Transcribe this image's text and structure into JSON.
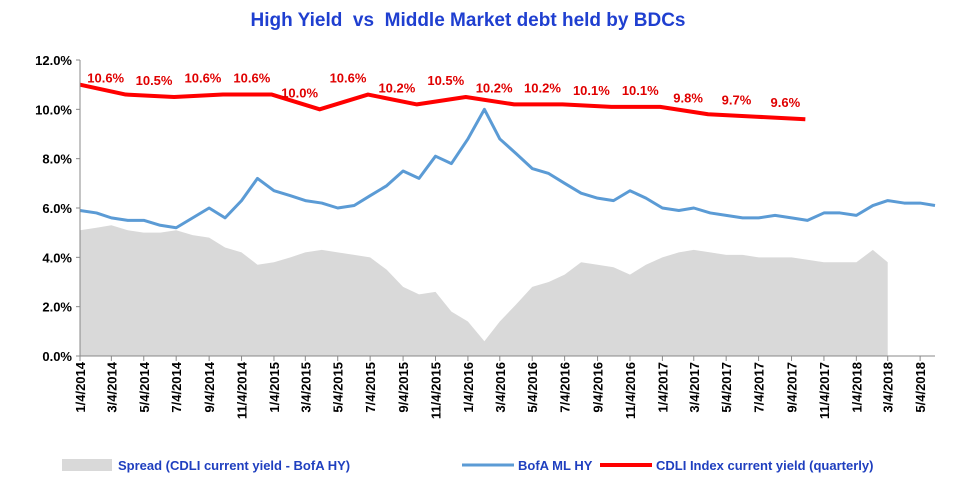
{
  "chart_data": {
    "type": "line",
    "title": "High Yield  vs  Middle Market debt held by BDCs",
    "xlim": [
      "1/4/2014",
      "6/1/2018"
    ],
    "xticks": [
      "1/4/2014",
      "3/4/2014",
      "5/4/2014",
      "7/4/2014",
      "9/4/2014",
      "11/4/2014",
      "1/4/2015",
      "3/4/2015",
      "5/4/2015",
      "7/4/2015",
      "9/4/2015",
      "11/4/2015",
      "1/4/2016",
      "3/4/2016",
      "5/4/2016",
      "7/4/2016",
      "9/4/2016",
      "11/4/2016",
      "1/4/2017",
      "3/4/2017",
      "5/4/2017",
      "7/4/2017",
      "9/4/2017",
      "11/4/2017",
      "1/4/2018",
      "3/4/2018",
      "5/4/2018"
    ],
    "ylim": [
      0,
      12
    ],
    "yticks": [
      {
        "value": 0,
        "label": "0.0%"
      },
      {
        "value": 2,
        "label": "2.0%"
      },
      {
        "value": 4,
        "label": "4.0%"
      },
      {
        "value": 6,
        "label": "6.0%"
      },
      {
        "value": 8,
        "label": "8.0%"
      },
      {
        "value": 10,
        "label": "10.0%"
      },
      {
        "value": 12,
        "label": "12.0%"
      }
    ],
    "legend": "bottom",
    "series": [
      {
        "name": "Spread (CDLI current yield - BofA HY)",
        "type": "area",
        "color": "#d9d9d9",
        "x": [
          "1/4/2014",
          "2/4/2014",
          "3/4/2014",
          "4/4/2014",
          "5/4/2014",
          "6/4/2014",
          "7/4/2014",
          "8/4/2014",
          "9/4/2014",
          "10/4/2014",
          "11/4/2014",
          "12/4/2014",
          "1/4/2015",
          "2/4/2015",
          "3/4/2015",
          "4/4/2015",
          "5/4/2015",
          "6/4/2015",
          "7/4/2015",
          "8/4/2015",
          "9/4/2015",
          "10/4/2015",
          "11/4/2015",
          "12/4/2015",
          "1/4/2016",
          "2/4/2016",
          "3/4/2016",
          "4/4/2016",
          "5/4/2016",
          "6/4/2016",
          "7/4/2016",
          "8/4/2016",
          "9/4/2016",
          "10/4/2016",
          "11/4/2016",
          "12/4/2016",
          "1/4/2017",
          "2/4/2017",
          "3/4/2017",
          "4/4/2017",
          "5/4/2017",
          "6/4/2017",
          "7/4/2017",
          "8/4/2017",
          "9/4/2017",
          "10/4/2017",
          "11/4/2017",
          "12/4/2017",
          "1/4/2018",
          "2/4/2018",
          "3/4/2018"
        ],
        "values": [
          5.1,
          5.2,
          5.3,
          5.1,
          5.0,
          5.0,
          5.1,
          4.9,
          4.8,
          4.4,
          4.2,
          3.7,
          3.8,
          4.0,
          4.2,
          4.3,
          4.2,
          4.1,
          4.0,
          3.5,
          2.8,
          2.5,
          2.6,
          1.8,
          1.4,
          0.6,
          1.4,
          2.1,
          2.8,
          3.0,
          3.3,
          3.8,
          3.7,
          3.6,
          3.3,
          3.7,
          4.0,
          4.2,
          4.3,
          4.2,
          4.1,
          4.1,
          4.0,
          4.0,
          4.0,
          3.9,
          3.8,
          3.8,
          3.8,
          4.3,
          3.8
        ]
      },
      {
        "name": "BofA ML HY",
        "type": "line",
        "color": "#5b9bd5",
        "x": [
          "1/4/2014",
          "2/4/2014",
          "3/4/2014",
          "4/4/2014",
          "5/4/2014",
          "6/4/2014",
          "7/4/2014",
          "8/4/2014",
          "9/4/2014",
          "10/4/2014",
          "11/4/2014",
          "12/4/2014",
          "1/4/2015",
          "2/4/2015",
          "3/4/2015",
          "4/4/2015",
          "5/4/2015",
          "6/4/2015",
          "7/4/2015",
          "8/4/2015",
          "9/4/2015",
          "10/4/2015",
          "11/4/2015",
          "12/4/2015",
          "1/4/2016",
          "2/4/2016",
          "3/4/2016",
          "4/4/2016",
          "5/4/2016",
          "6/4/2016",
          "7/4/2016",
          "8/4/2016",
          "9/4/2016",
          "10/4/2016",
          "11/4/2016",
          "12/4/2016",
          "1/4/2017",
          "2/4/2017",
          "3/4/2017",
          "4/4/2017",
          "5/4/2017",
          "6/4/2017",
          "7/4/2017",
          "8/4/2017",
          "9/4/2017",
          "10/4/2017",
          "11/4/2017",
          "12/4/2017",
          "1/4/2018",
          "2/4/2018",
          "3/4/2018",
          "4/4/2018",
          "5/4/2018",
          "6/1/2018"
        ],
        "values": [
          5.9,
          5.8,
          5.6,
          5.5,
          5.5,
          5.3,
          5.2,
          5.6,
          6.0,
          5.6,
          6.3,
          7.2,
          6.7,
          6.5,
          6.3,
          6.2,
          6.0,
          6.1,
          6.5,
          6.9,
          7.5,
          7.2,
          8.1,
          7.8,
          8.8,
          10.0,
          8.8,
          8.2,
          7.6,
          7.4,
          7.0,
          6.6,
          6.4,
          6.3,
          6.7,
          6.4,
          6.0,
          5.9,
          6.0,
          5.8,
          5.7,
          5.6,
          5.6,
          5.7,
          5.6,
          5.5,
          5.8,
          5.8,
          5.7,
          6.1,
          6.3,
          6.2,
          6.2,
          6.1
        ]
      },
      {
        "name": "CDLI Index current yield (quarterly)",
        "type": "line",
        "color": "#ff0000",
        "x": [
          "1/4/2014",
          "3/31/2014",
          "6/30/2014",
          "9/30/2014",
          "12/31/2014",
          "3/31/2015",
          "6/30/2015",
          "9/30/2015",
          "12/31/2015",
          "3/31/2016",
          "6/30/2016",
          "9/30/2016",
          "12/31/2016",
          "3/31/2017",
          "6/30/2017",
          "9/30/2017"
        ],
        "values": [
          11.0,
          10.6,
          10.5,
          10.6,
          10.6,
          10.0,
          10.6,
          10.2,
          10.5,
          10.2,
          10.2,
          10.1,
          10.1,
          9.8,
          9.7,
          9.6
        ],
        "value_labels": [
          null,
          "10.6%",
          "10.5%",
          "10.6%",
          "10.6%",
          "10.0%",
          "10.6%",
          "10.2%",
          "10.5%",
          "10.2%",
          "10.2%",
          "10.1%",
          "10.1%",
          "9.8%",
          "9.7%",
          "9.6%"
        ]
      }
    ]
  }
}
